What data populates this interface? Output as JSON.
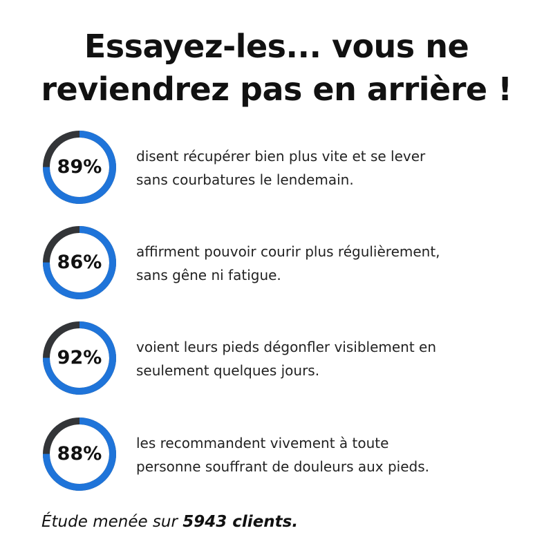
{
  "title": "Essayez-les... vous ne reviendrez pas en arrière !",
  "colors": {
    "ring_fill": "#1f74d9",
    "ring_track": "#333538"
  },
  "stats": [
    {
      "value": "89%",
      "text": "disent récupérer bien plus vite et se lever\nsans courbatures le lendemain."
    },
    {
      "value": "86%",
      "text": "affirment pouvoir courir plus régulièrement,\nsans gêne ni fatigue."
    },
    {
      "value": "92%",
      "text": "voient leurs pieds dégonfler visiblement en\nseulement quelques jours."
    },
    {
      "value": "88%",
      "text": "les recommandent vivement à toute\npersonne souffrant de douleurs aux pieds."
    }
  ],
  "ring_fill_fraction": 0.75,
  "footer": {
    "prefix": "Étude menée sur ",
    "emphasis": "5943 clients."
  }
}
